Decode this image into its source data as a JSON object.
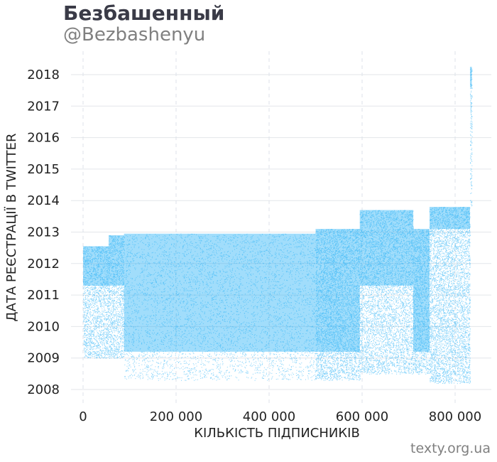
{
  "header": {
    "title": "Безбашенный",
    "subtitle": "@Bezbashenyu"
  },
  "credit": "texty.org.ua",
  "chart_data": {
    "type": "scatter",
    "xlabel": "КІЛЬКІСТЬ ПІДПИСНИКІВ",
    "ylabel": "ДАТА РЕЄСТРАЦІЇ В TWITTER",
    "xlim": [
      -15000,
      880000
    ],
    "ylim": [
      2007.6,
      2018.35
    ],
    "x_ticks": [
      0,
      200000,
      400000,
      600000,
      800000
    ],
    "x_tick_labels": [
      "0",
      "200 000",
      "400 000",
      "600 000",
      "800 000"
    ],
    "y_ticks": [
      2008,
      2009,
      2010,
      2011,
      2012,
      2013,
      2014,
      2015,
      2016,
      2017,
      2018
    ],
    "y_tick_labels": [
      "2008",
      "2009",
      "2010",
      "2011",
      "2012",
      "2013",
      "2014",
      "2015",
      "2016",
      "2017",
      "2018"
    ],
    "grid_x": "dashed",
    "grid_y": "solid",
    "point_color": "#1eadf5",
    "approx_points": 835000,
    "blocks": [
      {
        "x_from": 0,
        "x_to": 55000,
        "y_from": 2009.0,
        "y_to": 2012.55,
        "dense_from": 2011.3,
        "dense_to": 2012.55
      },
      {
        "x_from": 55000,
        "x_to": 88000,
        "y_from": 2009.0,
        "y_to": 2012.9,
        "dense_from": 2011.3,
        "dense_to": 2012.9
      },
      {
        "x_from": 88000,
        "x_to": 500000,
        "y_from": 2008.3,
        "y_to": 2012.95,
        "dense_from": 2009.2,
        "dense_to": 2012.95
      },
      {
        "x_from": 500000,
        "x_to": 595000,
        "y_from": 2008.3,
        "y_to": 2013.1,
        "dense_from": 2009.2,
        "dense_to": 2013.1
      },
      {
        "x_from": 595000,
        "x_to": 710000,
        "y_from": 2008.5,
        "y_to": 2013.7,
        "dense_from": 2011.3,
        "dense_to": 2013.7
      },
      {
        "x_from": 710000,
        "x_to": 745000,
        "y_from": 2008.5,
        "y_to": 2013.1,
        "dense_from": 2009.2,
        "dense_to": 2013.1
      },
      {
        "x_from": 745000,
        "x_to": 832000,
        "y_from": 2008.2,
        "y_to": 2013.8,
        "dense_from": 2013.1,
        "dense_to": 2013.8
      },
      {
        "x_from": 832000,
        "x_to": 836000,
        "y_from": 2013.8,
        "y_to": 2018.25,
        "dense_from": 2017.6,
        "dense_to": 2018.25
      }
    ]
  }
}
